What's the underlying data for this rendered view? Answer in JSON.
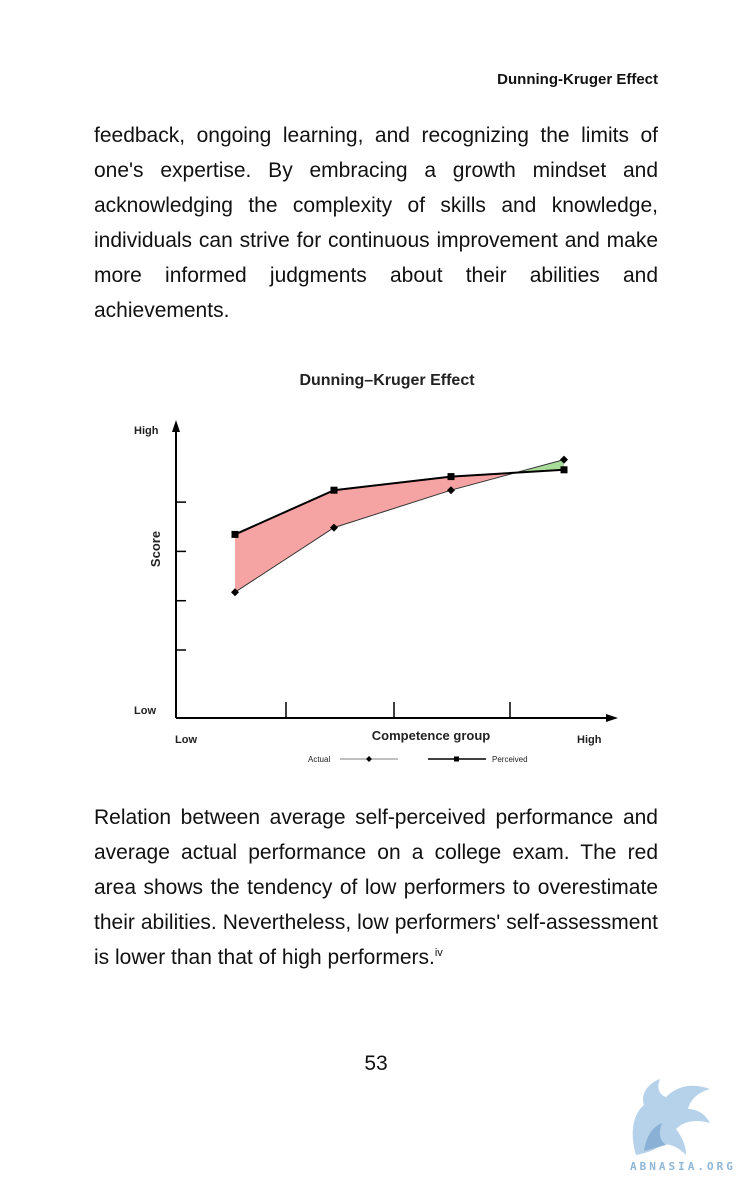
{
  "page": {
    "running_head": "Dunning-Kruger Effect",
    "paragraph_1": "feedback, ongoing learning, and recognizing the limits of one's expertise. By embracing a growth mindset and acknowledging the complexity of skills and knowledge, individuals can strive for continuous improvement and make more informed judgments about their abilities and achievements.",
    "caption": "Relation between average self-perceived performance and average actual performance on a college exam. The red area shows the tendency of low performers to overestimate their abilities. Nevertheless, low performers' self-assessment is lower than that of high performers.",
    "footnote_marker": "iv",
    "page_number": "53",
    "watermark_text": "ABNASIA.ORG"
  },
  "chart_data": {
    "type": "line",
    "title": "Dunning–Kruger Effect",
    "xlabel": "Competence group",
    "ylabel": "Score",
    "x_tick_labels": [
      "Low",
      "High"
    ],
    "y_tick_labels": [
      "Low",
      "High"
    ],
    "categories": [
      1,
      2,
      3,
      4
    ],
    "ylim": [
      0,
      100
    ],
    "series": [
      {
        "name": "Actual",
        "marker": "diamond",
        "values": [
          37,
          56,
          67,
          76
        ]
      },
      {
        "name": "Perceived",
        "marker": "square",
        "values": [
          54,
          67,
          71,
          73
        ]
      }
    ],
    "over_color": "#f5a3a3",
    "under_color": "#a9dc98",
    "legend_position": "bottom"
  }
}
